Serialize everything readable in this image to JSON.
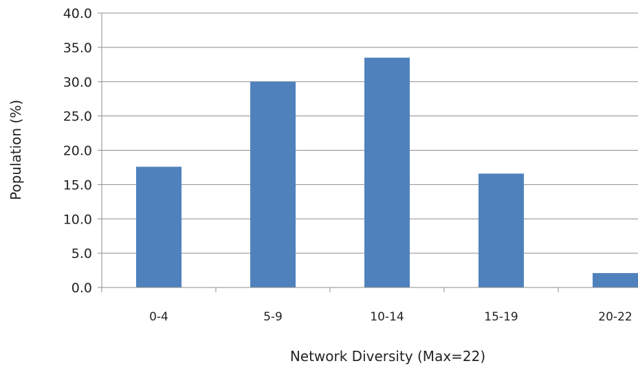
{
  "chart_data": {
    "type": "bar",
    "title": "",
    "xlabel": "Network Diversity (Max=22)",
    "ylabel": "Population (%)",
    "categories": [
      "0-4",
      "5-9",
      "10-14",
      "15-19",
      "20-22"
    ],
    "values": [
      17.6,
      30.0,
      33.5,
      16.6,
      2.1
    ],
    "ylim": [
      0,
      40
    ],
    "yticks": [
      "0.0",
      "5.0",
      "10.0",
      "15.0",
      "20.0",
      "25.0",
      "30.0",
      "35.0",
      "40.0"
    ],
    "grid": true,
    "legend": "none",
    "bar_color": "#4f81bd",
    "grid_color": "#8c8c8c"
  }
}
